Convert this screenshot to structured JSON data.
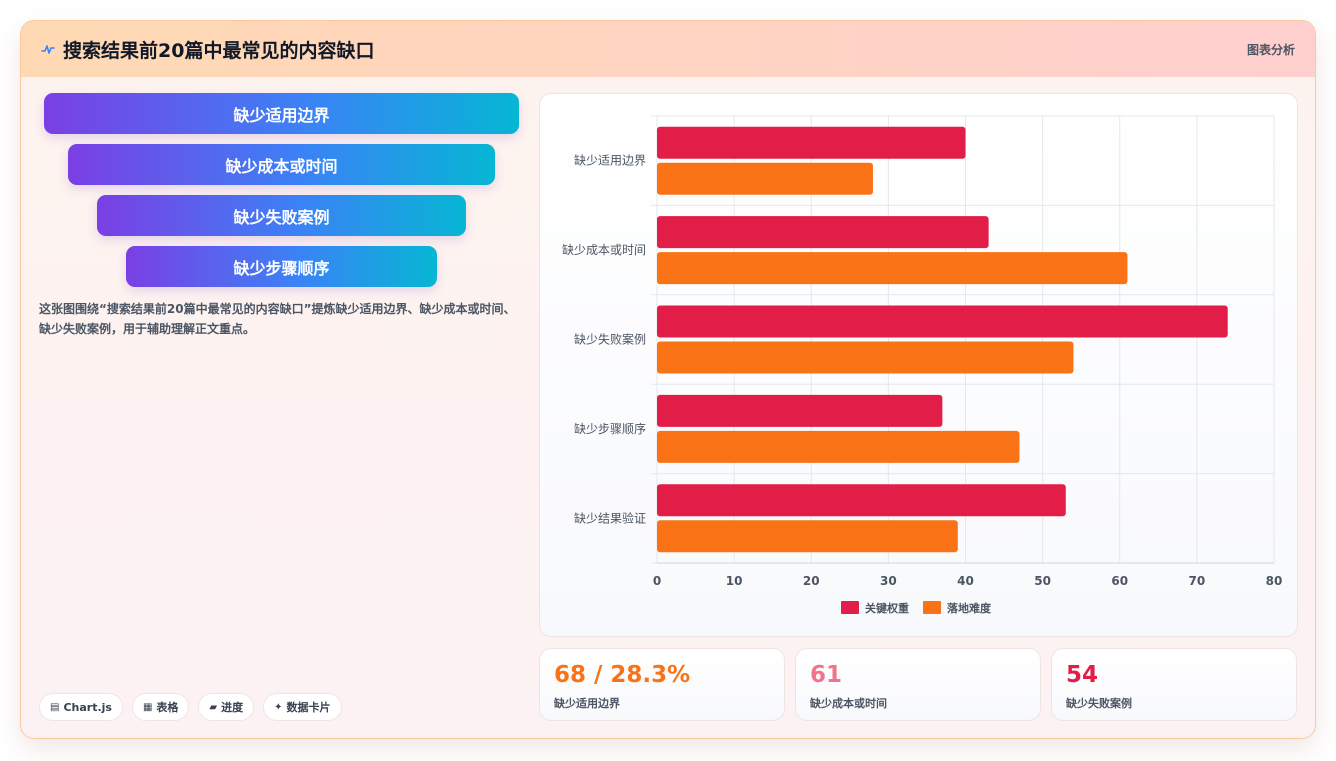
{
  "header": {
    "title": "搜索结果前20篇中最常见的内容缺口",
    "link_label": "图表分析"
  },
  "funnel": [
    {
      "label": "缺少适用边界"
    },
    {
      "label": "缺少成本或时间"
    },
    {
      "label": "缺少失败案例"
    },
    {
      "label": "缺少步骤顺序"
    }
  ],
  "description": "这张图围绕“搜索结果前20篇中最常见的内容缺口”提炼缺少适用边界、缺少成本或时间、缺少失败案例，用于辅助理解正文重点。",
  "tags": [
    {
      "icon": "chart-icon",
      "label": "Chart.js"
    },
    {
      "icon": "table-icon",
      "label": "表格"
    },
    {
      "icon": "progress-icon",
      "label": "进度"
    },
    {
      "icon": "sparkle-icon",
      "label": "数据卡片"
    }
  ],
  "chart_data": {
    "type": "bar",
    "orientation": "horizontal",
    "categories": [
      "缺少适用边界",
      "缺少成本或时间",
      "缺少失败案例",
      "缺少步骤顺序",
      "缺少结果验证"
    ],
    "series": [
      {
        "name": "关键权重",
        "color": "#e11d48",
        "values": [
          40,
          43,
          74,
          37,
          53
        ]
      },
      {
        "name": "落地难度",
        "color": "#f97316",
        "values": [
          28,
          61,
          54,
          47,
          39
        ]
      }
    ],
    "xlim": [
      0,
      80
    ],
    "xticks": [
      0,
      10,
      20,
      30,
      40,
      50,
      60,
      70,
      80
    ],
    "grid": true,
    "legend": "bottom"
  },
  "stats": [
    {
      "value": "68 / 28.3%",
      "label": "缺少适用边界",
      "color": "#f97316"
    },
    {
      "value": "61",
      "label": "缺少成本或时间",
      "color": "#f0758a"
    },
    {
      "value": "54",
      "label": "缺少失败案例",
      "color": "#e11d48"
    }
  ]
}
